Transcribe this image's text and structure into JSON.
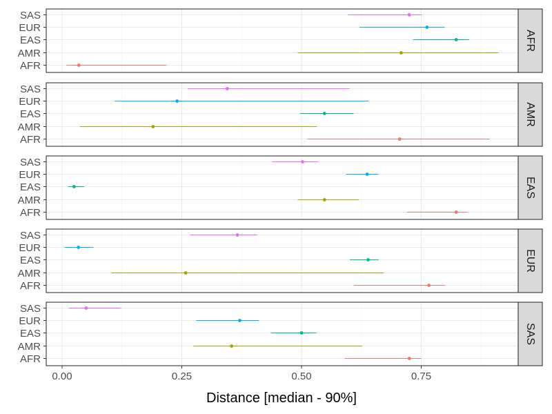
{
  "chart_data": {
    "type": "scatter",
    "title": "",
    "xlabel": "Distance [median - 90%]",
    "ylabel": "",
    "xlim": [
      -0.035,
      0.955
    ],
    "x_ticks": [
      0,
      0.25,
      0.5,
      0.75
    ],
    "x_tick_labels": [
      "0.00",
      "0.25",
      "0.50",
      "0.75"
    ],
    "categories": [
      "SAS",
      "EUR",
      "EAS",
      "AMR",
      "AFR"
    ],
    "grid": true,
    "legend": "none",
    "colors": {
      "AFR": "#F8766D",
      "AMR": "#A3A500",
      "EAS": "#00BF7D",
      "EUR": "#00B0F6",
      "SAS": "#E76BF3"
    },
    "panels": [
      {
        "facet": "AFR",
        "points": [
          {
            "group": "SAS",
            "median": 0.725,
            "low": 0.597,
            "high": 0.751
          },
          {
            "group": "EUR",
            "median": 0.762,
            "low": 0.621,
            "high": 0.799
          },
          {
            "group": "EAS",
            "median": 0.823,
            "low": 0.733,
            "high": 0.85
          },
          {
            "group": "AMR",
            "median": 0.708,
            "low": 0.492,
            "high": 0.911
          },
          {
            "group": "AFR",
            "median": 0.035,
            "low": 0.009,
            "high": 0.218
          }
        ]
      },
      {
        "facet": "AMR",
        "points": [
          {
            "group": "SAS",
            "median": 0.345,
            "low": 0.262,
            "high": 0.6
          },
          {
            "group": "EUR",
            "median": 0.24,
            "low": 0.11,
            "high": 0.64
          },
          {
            "group": "EAS",
            "median": 0.548,
            "low": 0.497,
            "high": 0.609
          },
          {
            "group": "AMR",
            "median": 0.19,
            "low": 0.037,
            "high": 0.532
          },
          {
            "group": "AFR",
            "median": 0.705,
            "low": 0.512,
            "high": 0.893
          }
        ]
      },
      {
        "facet": "EAS",
        "points": [
          {
            "group": "SAS",
            "median": 0.502,
            "low": 0.438,
            "high": 0.535
          },
          {
            "group": "EUR",
            "median": 0.637,
            "low": 0.593,
            "high": 0.661
          },
          {
            "group": "EAS",
            "median": 0.025,
            "low": 0.012,
            "high": 0.046
          },
          {
            "group": "AMR",
            "median": 0.548,
            "low": 0.492,
            "high": 0.62
          },
          {
            "group": "AFR",
            "median": 0.823,
            "low": 0.72,
            "high": 0.847
          }
        ]
      },
      {
        "facet": "EUR",
        "points": [
          {
            "group": "SAS",
            "median": 0.366,
            "low": 0.267,
            "high": 0.408
          },
          {
            "group": "EUR",
            "median": 0.034,
            "low": 0.005,
            "high": 0.065
          },
          {
            "group": "EAS",
            "median": 0.639,
            "low": 0.601,
            "high": 0.661
          },
          {
            "group": "AMR",
            "median": 0.258,
            "low": 0.103,
            "high": 0.672
          },
          {
            "group": "AFR",
            "median": 0.766,
            "low": 0.61,
            "high": 0.8
          }
        ]
      },
      {
        "facet": "SAS",
        "points": [
          {
            "group": "SAS",
            "median": 0.05,
            "low": 0.014,
            "high": 0.122
          },
          {
            "group": "EUR",
            "median": 0.371,
            "low": 0.28,
            "high": 0.411
          },
          {
            "group": "EAS",
            "median": 0.5,
            "low": 0.436,
            "high": 0.531
          },
          {
            "group": "AMR",
            "median": 0.354,
            "low": 0.274,
            "high": 0.627
          },
          {
            "group": "AFR",
            "median": 0.725,
            "low": 0.59,
            "high": 0.75
          }
        ]
      }
    ]
  }
}
